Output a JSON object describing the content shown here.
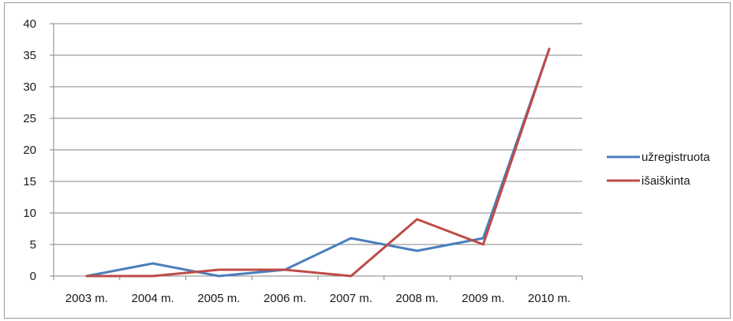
{
  "chart_data": {
    "type": "line",
    "categories": [
      "2003 m.",
      "2004 m.",
      "2005 m.",
      "2006 m.",
      "2007 m.",
      "2008 m.",
      "2009 m.",
      "2010 m."
    ],
    "series": [
      {
        "name": "užregistruota",
        "color": "#4a7ebb",
        "values": [
          0,
          2,
          0,
          1,
          6,
          4,
          6,
          36
        ]
      },
      {
        "name": "išaiškinta",
        "color": "#be4b48",
        "values": [
          0,
          0,
          1,
          1,
          0,
          9,
          5,
          36
        ]
      }
    ],
    "y_ticks": [
      "0",
      "5",
      "10",
      "15",
      "20",
      "25",
      "30",
      "35",
      "40"
    ],
    "ylim": [
      0,
      40
    ],
    "grid": true,
    "legend_position": "right",
    "title": "",
    "xlabel": "",
    "ylabel": ""
  }
}
